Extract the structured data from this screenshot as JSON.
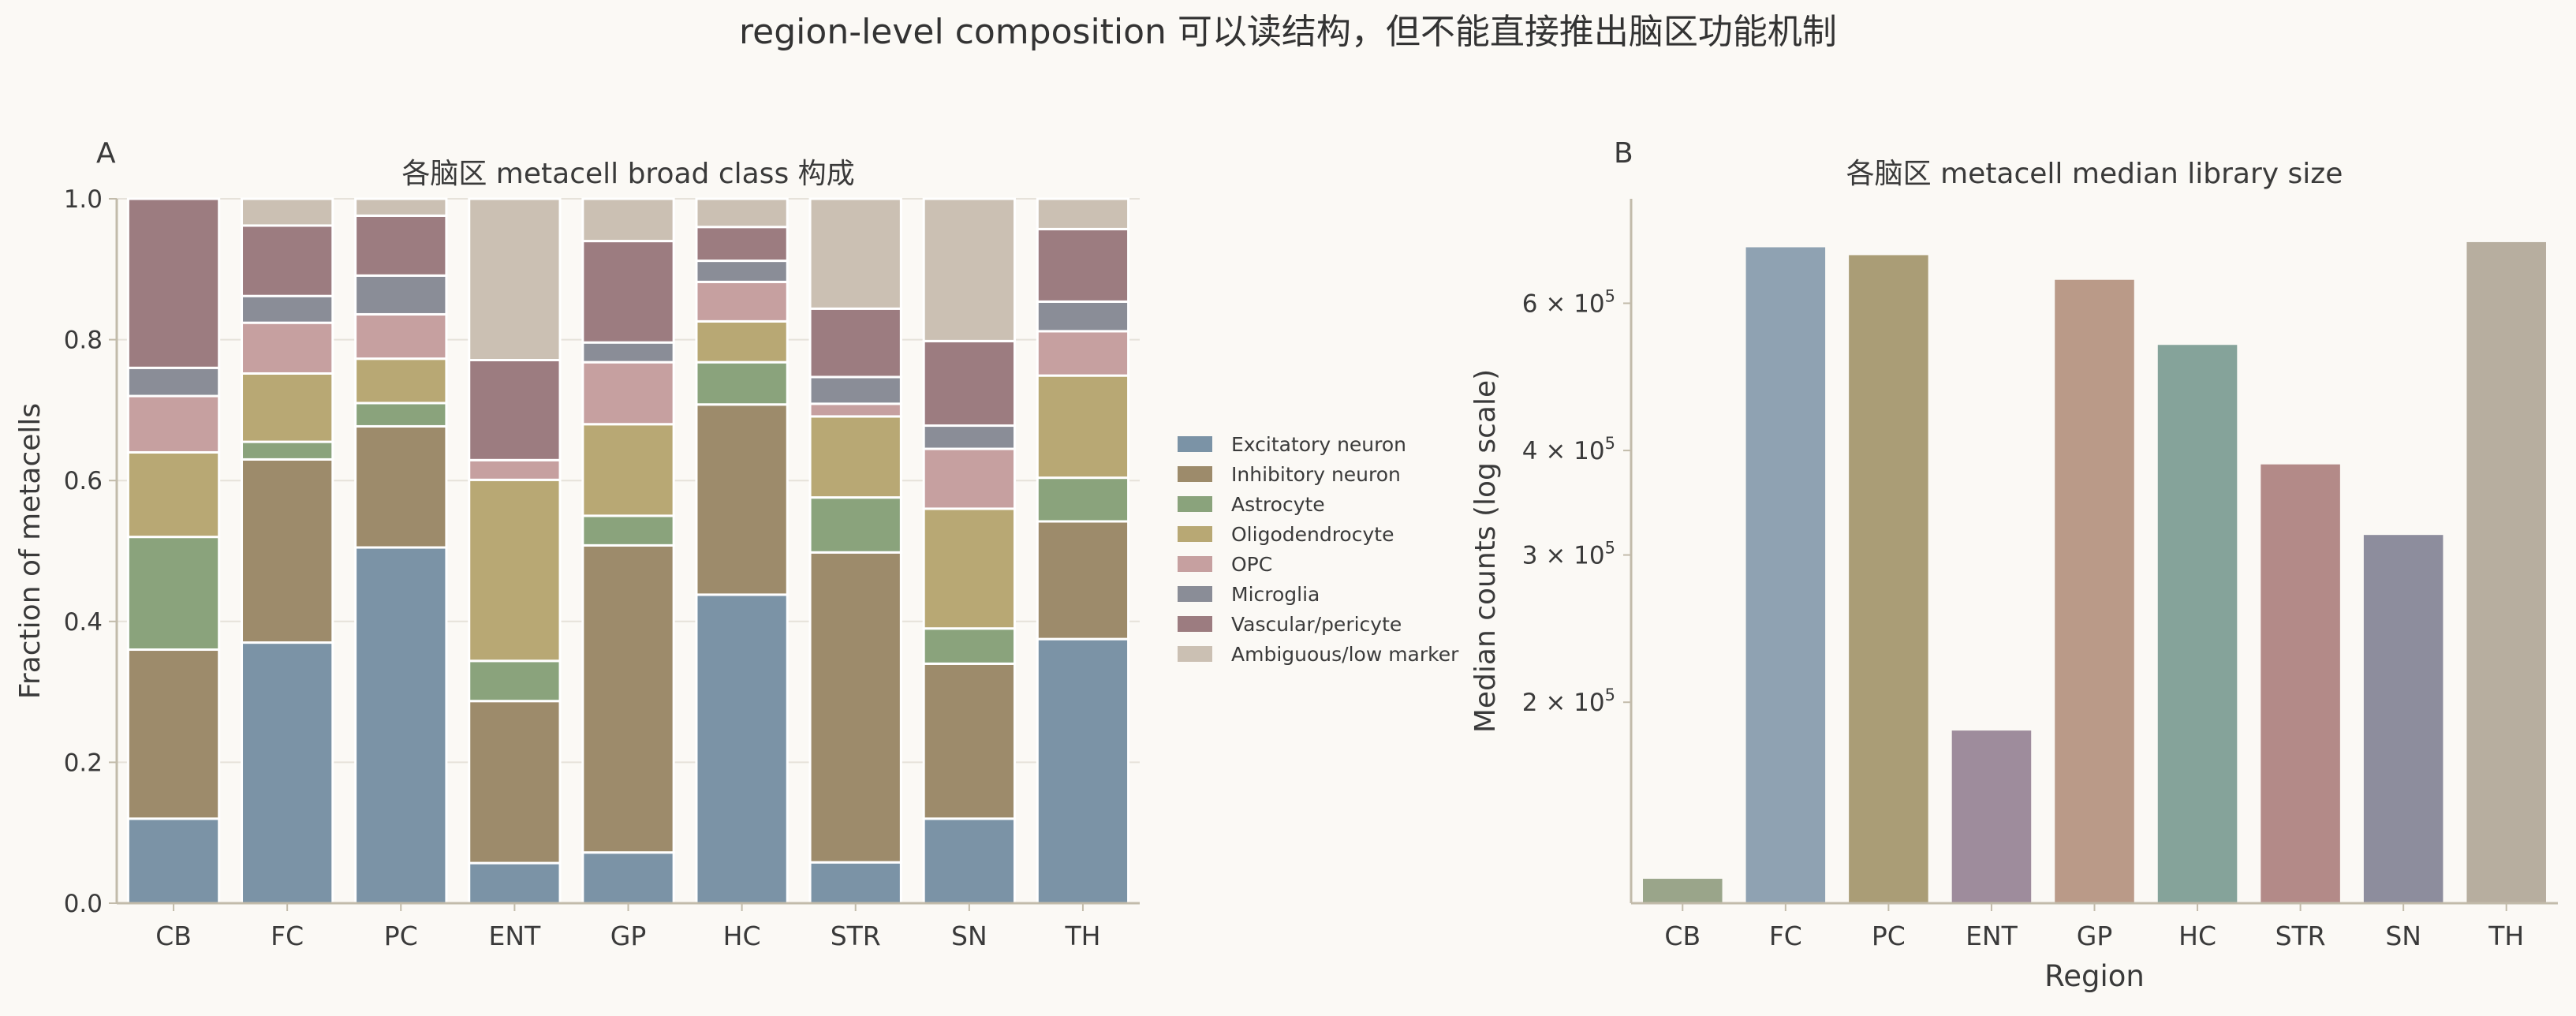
{
  "figure": {
    "suptitle": "region-level composition 可以读结构，但不能直接推出脑区功能机制"
  },
  "colors": {
    "background": "#fbf9f5",
    "axis": "#c2bbaa",
    "grid": "#e6e2da",
    "text": "#3a3a3a"
  },
  "chart_data": [
    {
      "panel_label": "A",
      "type": "bar",
      "stacked": true,
      "title": "各脑区 metacell broad class 构成",
      "xlabel": "",
      "ylabel": "Fraction of metacells",
      "ylim": [
        0,
        1.0
      ],
      "yticks": [
        "0.0",
        "0.2",
        "0.4",
        "0.6",
        "0.8",
        "1.0"
      ],
      "grid": "horizontal",
      "legend_position": "right",
      "categories": [
        "CB",
        "FC",
        "PC",
        "ENT",
        "GP",
        "HC",
        "STR",
        "SN",
        "TH"
      ],
      "series": [
        {
          "name": "Excitatory neuron",
          "color": "#7b93a6",
          "values": [
            0.12,
            0.37,
            0.505,
            0.057,
            0.072,
            0.438,
            0.058,
            0.12,
            0.375
          ]
        },
        {
          "name": "Inhibitory neuron",
          "color": "#9d8b6b",
          "values": [
            0.24,
            0.26,
            0.172,
            0.23,
            0.436,
            0.27,
            0.44,
            0.22,
            0.167
          ]
        },
        {
          "name": "Astrocyte",
          "color": "#8aa37c",
          "values": [
            0.16,
            0.025,
            0.033,
            0.057,
            0.042,
            0.06,
            0.078,
            0.05,
            0.062
          ]
        },
        {
          "name": "Oligodendrocyte",
          "color": "#b8a874",
          "values": [
            0.12,
            0.097,
            0.063,
            0.257,
            0.13,
            0.058,
            0.115,
            0.17,
            0.145
          ]
        },
        {
          "name": "OPC",
          "color": "#c6a0a0",
          "values": [
            0.08,
            0.072,
            0.063,
            0.028,
            0.088,
            0.056,
            0.018,
            0.085,
            0.063
          ]
        },
        {
          "name": "Microglia",
          "color": "#8a8d97",
          "values": [
            0.04,
            0.038,
            0.055,
            0.0,
            0.028,
            0.03,
            0.038,
            0.033,
            0.042
          ]
        },
        {
          "name": "Vascular/pericyte",
          "color": "#9c7c80",
          "values": [
            0.24,
            0.1,
            0.085,
            0.142,
            0.144,
            0.048,
            0.097,
            0.12,
            0.103
          ]
        },
        {
          "name": "Ambiguous/low marker",
          "color": "#cbc0b3",
          "values": [
            0.0,
            0.038,
            0.024,
            0.229,
            0.06,
            0.04,
            0.156,
            0.202,
            0.043
          ]
        }
      ]
    },
    {
      "panel_label": "B",
      "type": "bar",
      "title": "各脑区 metacell median library size",
      "xlabel": "Region",
      "ylabel": "Median counts (log scale)",
      "yscale": "log",
      "ylim": [
        115000,
        800000
      ],
      "yticks": [
        200000,
        300000,
        400000,
        600000
      ],
      "ytick_mantissa": [
        "2",
        "3",
        "4",
        "6"
      ],
      "ytick_base": "× 10",
      "ytick_exponent": "5",
      "grid": "none",
      "categories": [
        "CB",
        "FC",
        "PC",
        "ENT",
        "GP",
        "HC",
        "STR",
        "SN",
        "TH"
      ],
      "values": [
        123000,
        700000,
        685000,
        185000,
        640000,
        535000,
        385000,
        317000,
        710000
      ],
      "colors": [
        "#9aa58a",
        "#8fa2b2",
        "#aa9d76",
        "#9e8c9c",
        "#ba9a88",
        "#85a39a",
        "#b38a88",
        "#8d8d9d",
        "#b7ae9f"
      ]
    }
  ]
}
